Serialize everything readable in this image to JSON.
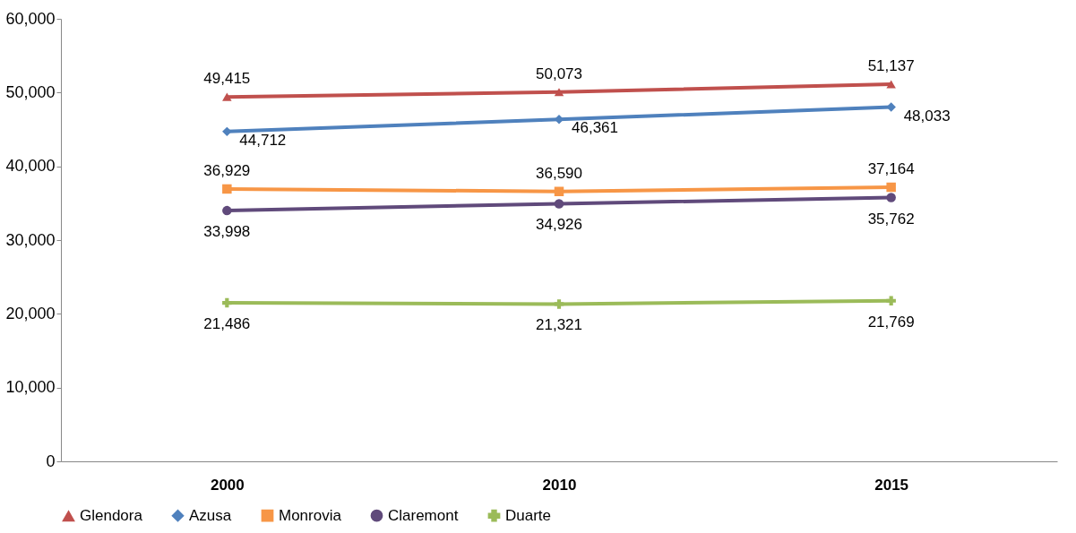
{
  "chart_data": {
    "type": "line",
    "categories": [
      "2000",
      "2010",
      "2015"
    ],
    "series": [
      {
        "name": "Glendora",
        "color": "#c0504d",
        "marker": "triangle",
        "values": [
          49415,
          50073,
          51137
        ],
        "value_labels": [
          "49,415",
          "50,073",
          "51,137"
        ]
      },
      {
        "name": "Azusa",
        "color": "#4f81bd",
        "marker": "diamond",
        "values": [
          44712,
          46361,
          48033
        ],
        "value_labels": [
          "44,712",
          "46,361",
          "48,033"
        ]
      },
      {
        "name": "Monrovia",
        "color": "#f79646",
        "marker": "square",
        "values": [
          36929,
          36590,
          37164
        ],
        "value_labels": [
          "36,929",
          "36,590",
          "37,164"
        ]
      },
      {
        "name": "Claremont",
        "color": "#604a7b",
        "marker": "circle",
        "values": [
          33998,
          34926,
          35762
        ],
        "value_labels": [
          "33,998",
          "34,926",
          "35,762"
        ]
      },
      {
        "name": "Duarte",
        "color": "#9bbb59",
        "marker": "cross",
        "values": [
          21486,
          21321,
          21769
        ],
        "value_labels": [
          "21,486",
          "21,321",
          "21,769"
        ]
      }
    ],
    "ylim": [
      0,
      60000
    ],
    "yticks": [
      0,
      {
        "value": 10000,
        "label": "10,000"
      },
      {
        "value": 20000,
        "label": "20,000"
      },
      {
        "value": 30000,
        "label": "30,000"
      },
      {
        "value": 40000,
        "label": "40,000"
      },
      {
        "value": 50000,
        "label": "50,000"
      },
      {
        "value": 60000,
        "label": "60,000"
      }
    ],
    "grid": false,
    "legend": "bottom",
    "line_style": "solid"
  }
}
